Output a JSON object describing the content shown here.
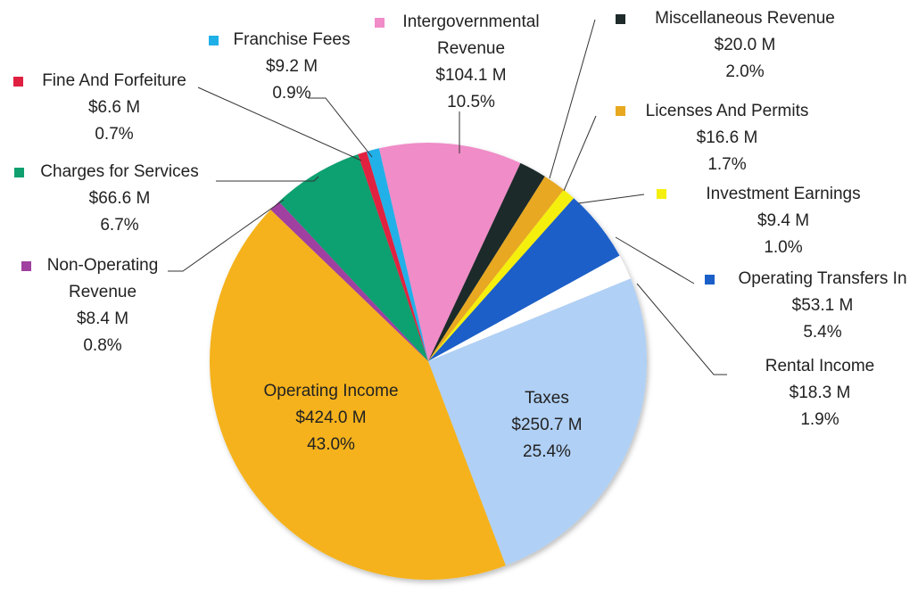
{
  "chart_data": {
    "type": "pie",
    "categories": [
      "Intergovernmental Revenue",
      "Miscellaneous Revenue",
      "Licenses And Permits",
      "Investment Earnings",
      "Operating Transfers In",
      "Rental Income",
      "Taxes",
      "Operating Income",
      "Non-Operating Revenue",
      "Charges for Services",
      "Fine And Forfeiture",
      "Franchise Fees"
    ],
    "values": [
      104.1,
      20.0,
      16.6,
      9.4,
      53.1,
      18.3,
      250.7,
      424.0,
      8.4,
      66.6,
      6.6,
      9.2
    ],
    "value_labels": [
      "$104.1 M",
      "$20.0 M",
      "$16.6 M",
      "$9.4 M",
      "$53.1 M",
      "$18.3 M",
      "$250.7 M",
      "$424.0 M",
      "$8.4 M",
      "$66.6 M",
      "$6.6 M",
      "$9.2 M"
    ],
    "percent_labels": [
      "10.5%",
      "2.0%",
      "1.7%",
      "1.0%",
      "5.4%",
      "1.9%",
      "25.4%",
      "43.0%",
      "0.8%",
      "6.7%",
      "0.7%",
      "0.9%"
    ],
    "colors": [
      "#f08cc8",
      "#1f2a2a",
      "#e8a820",
      "#f5ef10",
      "#1a5fc8",
      "#ffffff",
      "#b0d0f5",
      "#f5b21a",
      "#a040a0",
      "#10a070",
      "#e02040",
      "#20b0e8"
    ]
  }
}
